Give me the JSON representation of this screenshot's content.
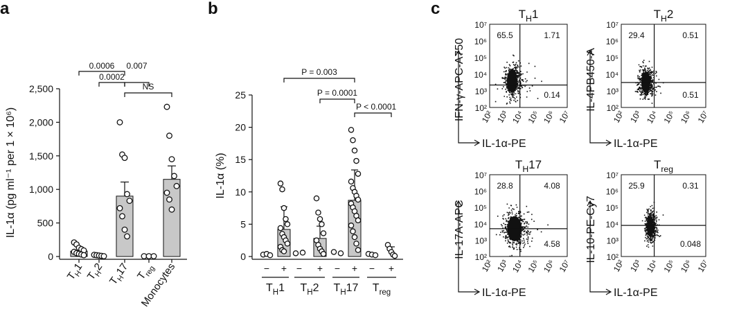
{
  "panel_labels": [
    "a",
    "b",
    "c"
  ],
  "chart_data": [
    {
      "panel": "a",
      "type": "bar",
      "ylabel": "IL-1α (pg ml⁻¹ per 1 × 10⁶)",
      "ylim": [
        0,
        2500
      ],
      "yticks": [
        0,
        500,
        1000,
        1500,
        2000,
        2500
      ],
      "ytick_labels": [
        "0",
        "500",
        "1,000",
        "1,500",
        "2,000",
        "2,500"
      ],
      "categories": [
        "TH1",
        "TH2",
        "TH17",
        "Treg",
        "Monocytes"
      ],
      "category_labels": [
        {
          "main": "T",
          "sub": "H",
          "rest": "1"
        },
        {
          "main": "T",
          "sub": "H",
          "rest": "2"
        },
        {
          "main": "T",
          "sub": "H",
          "rest": "17"
        },
        {
          "main": "T",
          "sub": "reg",
          "rest": ""
        },
        {
          "main": "Monocytes",
          "sub": "",
          "rest": ""
        }
      ],
      "means": [
        80,
        15,
        900,
        5,
        1150
      ],
      "errors": [
        null,
        null,
        210,
        null,
        200
      ],
      "points": [
        [
          210,
          180,
          130,
          110,
          90,
          70,
          50,
          40,
          30,
          20
        ],
        [
          25,
          20,
          15,
          10,
          5
        ],
        [
          2000,
          1520,
          1470,
          930,
          830,
          720,
          600,
          400,
          300
        ],
        [
          5,
          5,
          5
        ],
        [
          2230,
          1800,
          1450,
          1200,
          1050,
          950,
          850,
          700
        ]
      ],
      "comparisons": [
        {
          "from": 0,
          "to": 2,
          "label": "0.0006"
        },
        {
          "from": 2,
          "to": 3,
          "label": "0.007"
        },
        {
          "from": 1,
          "to": 2,
          "label": "0.0002"
        },
        {
          "from": 2,
          "to": 4,
          "label": "NS"
        }
      ]
    },
    {
      "panel": "b",
      "type": "bar",
      "ylabel": "IL-1α (%)",
      "ylim": [
        0,
        25
      ],
      "yticks": [
        0,
        5,
        10,
        15,
        20,
        25
      ],
      "ytick_labels": [
        "0",
        "5",
        "10",
        "15",
        "20",
        "25"
      ],
      "conditions": [
        "−",
        "+"
      ],
      "groups": [
        {
          "main": "T",
          "sub": "H",
          "rest": "1"
        },
        {
          "main": "T",
          "sub": "H",
          "rest": "2"
        },
        {
          "main": "T",
          "sub": "H",
          "rest": "17"
        },
        {
          "main": "T",
          "sub": "reg",
          "rest": ""
        }
      ],
      "bars": [
        {
          "group": 0,
          "condition": "−",
          "mean": 0.3,
          "error": null,
          "points": [
            0.3,
            0.4,
            0.2
          ]
        },
        {
          "group": 0,
          "condition": "+",
          "mean": 4.2,
          "error": 3.5,
          "points": [
            11.3,
            10.4,
            7.5,
            5.8,
            5.0,
            4.4,
            3.5,
            3.0,
            2.5,
            2.0,
            1.5,
            1.0,
            0.8
          ]
        },
        {
          "group": 1,
          "condition": "−",
          "mean": 0.5,
          "error": null,
          "points": [
            0.5,
            0.6
          ]
        },
        {
          "group": 1,
          "condition": "+",
          "mean": 2.8,
          "error": 1.9,
          "points": [
            9.0,
            6.8,
            5.8,
            5.0,
            3.6,
            2.5,
            1.8,
            1.2,
            0.8,
            0.4
          ]
        },
        {
          "group": 2,
          "condition": "−",
          "mean": 0.5,
          "error": null,
          "points": [
            0.7,
            0.5
          ]
        },
        {
          "group": 2,
          "condition": "+",
          "mean": 8.7,
          "error": 4.7,
          "points": [
            19.6,
            18.0,
            16.4,
            14.8,
            12.8,
            11.6,
            10.6,
            10.0,
            9.4,
            8.8,
            8.2,
            7.6,
            7.0,
            6.3,
            5.6,
            4.8,
            3.9,
            3.0,
            2.0,
            1.0
          ]
        },
        {
          "group": 3,
          "condition": "−",
          "mean": 0.3,
          "error": null,
          "points": [
            0.4,
            0.3,
            0.2
          ]
        },
        {
          "group": 3,
          "condition": "+",
          "mean": 0.8,
          "error": 0.7,
          "points": [
            1.8,
            1.2,
            0.7,
            0.3,
            0.1
          ]
        }
      ],
      "comparisons": [
        {
          "from_bar": 1,
          "to_bar": 5,
          "label": "P = 0.003"
        },
        {
          "from_bar": 3,
          "to_bar": 5,
          "label": "P = 0.0001"
        },
        {
          "from_bar": 5,
          "to_bar": 7,
          "label": "P < 0.0001"
        }
      ]
    },
    {
      "panel": "c",
      "type": "scatter",
      "axis_ticks": [
        "10²",
        "10³",
        "10⁴",
        "10⁵",
        "10⁶",
        "10⁷"
      ],
      "xlim": [
        2,
        7
      ],
      "ylim": [
        2,
        7
      ],
      "scale": "log",
      "plots": [
        {
          "title": {
            "main": "T",
            "sub": "H",
            "rest": "1"
          },
          "xlabel": "IL-1α-PE",
          "ylabel": "IFN-γ-APC-A750",
          "gate": [
            3.95,
            3.35
          ],
          "quadrants": {
            "top_left": "65.5",
            "top_right": "1.71",
            "bottom_left": "",
            "bottom_right": "0.14"
          },
          "cloud": {
            "cx": 3.45,
            "cy": 3.6,
            "sx": 0.28,
            "sy": 0.5
          }
        },
        {
          "title": {
            "main": "T",
            "sub": "H",
            "rest": "2"
          },
          "xlabel": "IL-1α-PE",
          "ylabel": "IL-4PB450-A",
          "gate": [
            3.95,
            3.5
          ],
          "quadrants": {
            "top_left": "29.4",
            "top_right": "0.51",
            "bottom_left": "",
            "bottom_right": "0.51"
          },
          "cloud": {
            "cx": 3.45,
            "cy": 3.5,
            "sx": 0.22,
            "sy": 0.45
          }
        },
        {
          "title": {
            "main": "T",
            "sub": "H",
            "rest": "17"
          },
          "xlabel": "IL-1α-PE",
          "ylabel": "IL-17A-APC",
          "gate": [
            3.95,
            3.7
          ],
          "quadrants": {
            "top_left": "28.8",
            "top_right": "4.08",
            "bottom_left": "",
            "bottom_right": "4.58"
          },
          "cloud": {
            "cx": 3.6,
            "cy": 3.7,
            "sx": 0.38,
            "sy": 0.55
          }
        },
        {
          "title": {
            "main": "T",
            "sub": "reg",
            "rest": ""
          },
          "xlabel": "IL-1α-PE",
          "ylabel": "IL-10-PE-Cy7",
          "gate": [
            3.95,
            3.9
          ],
          "quadrants": {
            "top_left": "25.9",
            "top_right": "0.31",
            "bottom_left": "",
            "bottom_right": "0.048"
          },
          "cloud": {
            "cx": 3.7,
            "cy": 3.85,
            "sx": 0.15,
            "sy": 0.45
          }
        }
      ]
    }
  ]
}
